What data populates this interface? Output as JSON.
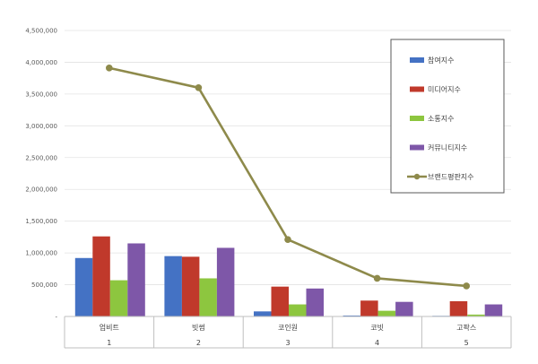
{
  "chart_data": {
    "type": "bar",
    "categories": [
      "업비트",
      "빗썸",
      "코인원",
      "코빗",
      "고팍스"
    ],
    "category_numbers": [
      "1",
      "2",
      "3",
      "4",
      "5"
    ],
    "series": [
      {
        "name": "참여지수",
        "type": "bar",
        "color": "#4472C4",
        "values": [
          920000,
          950000,
          80000,
          15000,
          10000
        ]
      },
      {
        "name": "미디어지수",
        "type": "bar",
        "color": "#C0392B",
        "values": [
          1260000,
          940000,
          470000,
          250000,
          240000
        ]
      },
      {
        "name": "소통지수",
        "type": "bar",
        "color": "#8DC63F",
        "values": [
          570000,
          600000,
          190000,
          90000,
          30000
        ]
      },
      {
        "name": "커뮤니티지수",
        "type": "bar",
        "color": "#7E57A8",
        "values": [
          1150000,
          1080000,
          440000,
          230000,
          190000
        ]
      },
      {
        "name": "브랜드평판지수",
        "type": "line",
        "color": "#8E8A4B",
        "values": [
          3910000,
          3600000,
          1210000,
          600000,
          480000
        ]
      }
    ],
    "ylim": [
      0,
      4500000
    ],
    "yticks": [
      0,
      500000,
      1000000,
      1500000,
      2000000,
      2500000,
      3000000,
      3500000,
      4000000,
      4500000
    ],
    "ytick_labels": [
      "-",
      "500,000",
      "1,000,000",
      "1,500,000",
      "2,000,000",
      "2,500,000",
      "3,000,000",
      "3,500,000",
      "4,000,000",
      "4,500,000"
    ],
    "grid": true,
    "legend_position": "right"
  }
}
